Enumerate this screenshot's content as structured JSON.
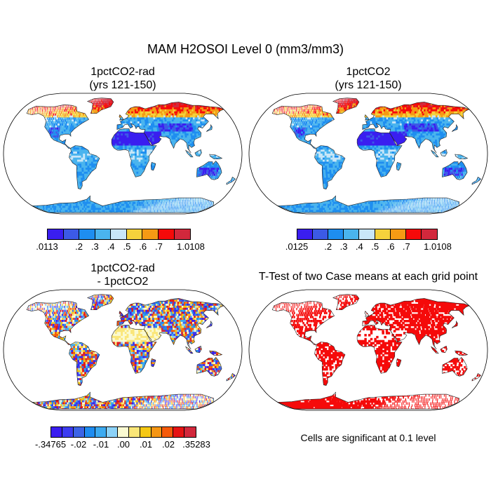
{
  "title": "MAM H2OSOI Level 0 (mm3/mm3)",
  "panels": [
    {
      "id": "p1",
      "title_line1": "1pctCO2-rad",
      "title_line2": "(yrs 121-150)",
      "field": "soil-moisture"
    },
    {
      "id": "p2",
      "title_line1": "1pctCO2",
      "title_line2": "(yrs 121-150)",
      "field": "soil-moisture"
    },
    {
      "id": "p3",
      "title_line1": "1pctCO2-rad",
      "title_line2": "- 1pctCO2",
      "field": "difference"
    },
    {
      "id": "p4",
      "title_line1": "T-Test of two Case means at each grid point",
      "title_line2": "",
      "field": "significance"
    }
  ],
  "colorbars": [
    {
      "id": "cb1",
      "colors": [
        "#3a1ef0",
        "#3c5ae6",
        "#1e8ef0",
        "#4ab4ee",
        "#c8e6f8",
        "#f5d23c",
        "#f59a14",
        "#f50a0a",
        "#d2283c"
      ],
      "labels": [
        ".0113",
        ".2",
        ".3",
        ".4",
        ".5",
        ".6",
        ".7",
        "1.0108"
      ]
    },
    {
      "id": "cb2",
      "colors": [
        "#3a1ef0",
        "#3c5ae6",
        "#1e8ef0",
        "#4ab4ee",
        "#c8e6f8",
        "#f5d23c",
        "#f59a14",
        "#f50a0a",
        "#d2283c"
      ],
      "labels": [
        ".0125",
        ".2",
        ".3",
        ".4",
        ".5",
        ".6",
        ".7",
        "1.0108"
      ]
    },
    {
      "id": "cb3",
      "colors": [
        "#3a1ef0",
        "#3c3cf0",
        "#3c64e6",
        "#1e8cf0",
        "#3caaf0",
        "#8cd2f8",
        "#fafad2",
        "#fae678",
        "#f5c814",
        "#f59614",
        "#f55a0a",
        "#e61414",
        "#d2283c"
      ],
      "labels": [
        "-.34765",
        "-.02",
        "-.01",
        ".00",
        ".01",
        ".02",
        ".35283"
      ]
    }
  ],
  "note": "Cells are significant at 0.1 level"
}
